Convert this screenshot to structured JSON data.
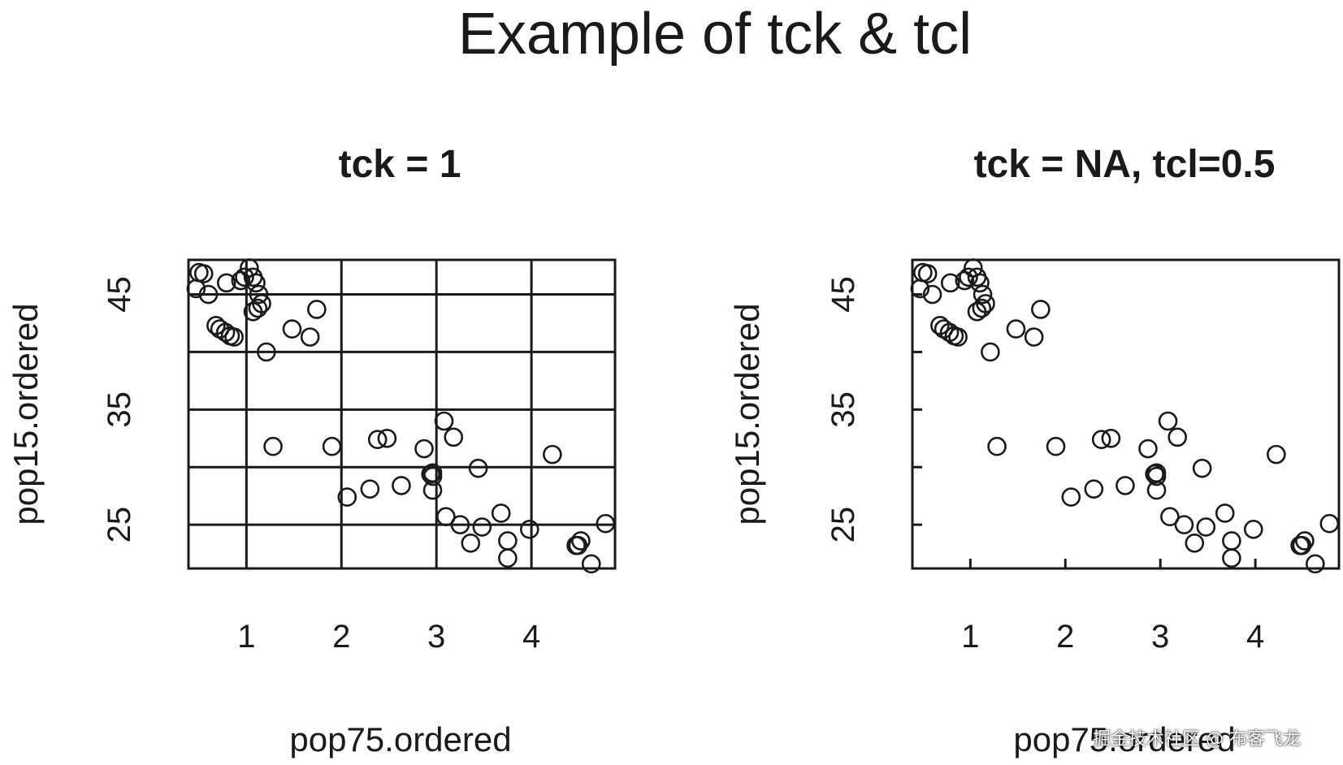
{
  "figure": {
    "title": "Example of tck & tcl",
    "watermark": "掘金技术社区 @ 布客飞龙"
  },
  "chart_data": [
    {
      "type": "scatter",
      "title": "tck = 1",
      "xlabel": "pop75.ordered",
      "ylabel": "pop15.ordered",
      "xlim": [
        0.39,
        4.88
      ],
      "ylim": [
        21.2,
        48.0
      ],
      "x_ticks": [
        1,
        2,
        3,
        4
      ],
      "y_ticks": [
        25,
        35,
        45
      ],
      "y_grid": [
        20,
        25,
        30,
        35,
        40,
        45
      ],
      "grid": true,
      "tick_style": "full-length gridlines",
      "x": [
        0.5,
        0.55,
        0.47,
        0.6,
        0.68,
        0.72,
        0.78,
        0.83,
        0.87,
        0.79,
        0.94,
        0.98,
        1.03,
        1.07,
        1.1,
        1.13,
        1.07,
        1.12,
        1.16,
        1.21,
        1.28,
        1.48,
        1.67,
        1.74,
        2.06,
        1.9,
        2.3,
        2.48,
        2.63,
        2.38,
        2.87,
        2.96,
        2.94,
        2.96,
        2.96,
        3.08,
        3.18,
        3.1,
        3.25,
        3.36,
        3.44,
        3.48,
        3.68,
        3.75,
        3.75,
        3.98,
        4.22,
        4.47,
        4.52,
        4.49,
        4.63,
        4.78
      ],
      "y": [
        46.9,
        46.8,
        45.5,
        45.0,
        42.3,
        42.0,
        41.7,
        41.4,
        41.3,
        46.0,
        46.2,
        46.5,
        47.3,
        46.5,
        46.0,
        45.0,
        43.5,
        43.8,
        44.2,
        40.0,
        31.8,
        42.0,
        41.3,
        43.7,
        27.4,
        31.8,
        28.1,
        32.5,
        28.4,
        32.4,
        31.6,
        29.2,
        29.4,
        28.0,
        29.5,
        34.0,
        32.6,
        25.7,
        25.0,
        23.4,
        29.9,
        24.8,
        26.0,
        22.1,
        23.6,
        24.6,
        31.1,
        23.2,
        23.6,
        23.2,
        21.6,
        25.1
      ]
    },
    {
      "type": "scatter",
      "title": "tck = NA, tcl=0.5",
      "xlabel": "pop75.ordered",
      "ylabel": "pop15.ordered",
      "xlim": [
        0.39,
        4.88
      ],
      "ylim": [
        21.2,
        48.0
      ],
      "x_ticks": [
        1,
        2,
        3,
        4
      ],
      "y_ticks": [
        25,
        35,
        45
      ],
      "y_minor_ticks": [
        20,
        25,
        30,
        35,
        40,
        45
      ],
      "grid": false,
      "tick_style": "inward ticks (tcl=0.5)",
      "x": [
        0.5,
        0.55,
        0.47,
        0.6,
        0.68,
        0.72,
        0.78,
        0.83,
        0.87,
        0.79,
        0.94,
        0.98,
        1.03,
        1.07,
        1.1,
        1.13,
        1.07,
        1.12,
        1.16,
        1.21,
        1.28,
        1.48,
        1.67,
        1.74,
        2.06,
        1.9,
        2.3,
        2.48,
        2.63,
        2.38,
        2.87,
        2.96,
        2.94,
        2.96,
        2.96,
        3.08,
        3.18,
        3.1,
        3.25,
        3.36,
        3.44,
        3.48,
        3.68,
        3.75,
        3.75,
        3.98,
        4.22,
        4.47,
        4.52,
        4.49,
        4.63,
        4.78
      ],
      "y": [
        46.9,
        46.8,
        45.5,
        45.0,
        42.3,
        42.0,
        41.7,
        41.4,
        41.3,
        46.0,
        46.2,
        46.5,
        47.3,
        46.5,
        46.0,
        45.0,
        43.5,
        43.8,
        44.2,
        40.0,
        31.8,
        42.0,
        41.3,
        43.7,
        27.4,
        31.8,
        28.1,
        32.5,
        28.4,
        32.4,
        31.6,
        29.2,
        29.4,
        28.0,
        29.5,
        34.0,
        32.6,
        25.7,
        25.0,
        23.4,
        29.9,
        24.8,
        26.0,
        22.1,
        23.6,
        24.6,
        31.1,
        23.2,
        23.6,
        23.2,
        21.6,
        25.1
      ]
    }
  ]
}
